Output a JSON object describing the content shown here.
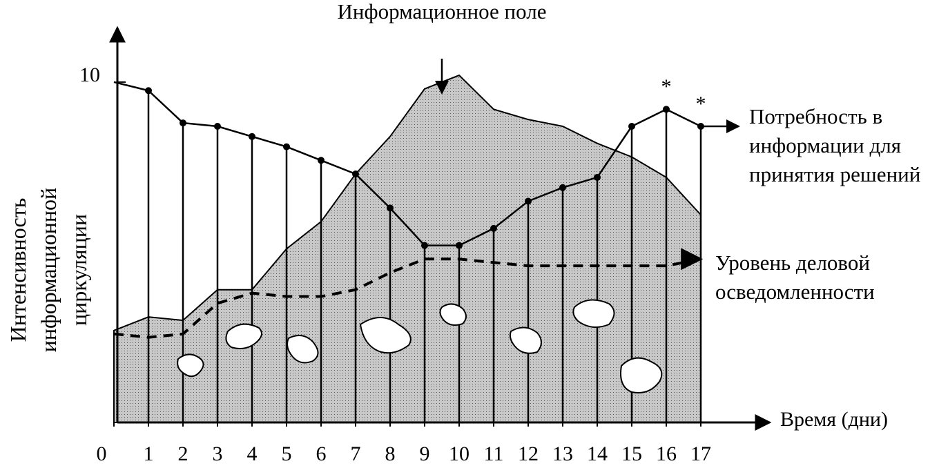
{
  "chart_data": {
    "type": "line",
    "x_label": "Время (дни)",
    "y_label": "Интенсивность информационной циркуляции",
    "x": [
      0,
      1,
      2,
      3,
      4,
      5,
      6,
      7,
      8,
      9,
      10,
      11,
      12,
      13,
      14,
      15,
      16,
      17
    ],
    "xlim": [
      0,
      19
    ],
    "xticks": [
      0,
      1,
      2,
      3,
      4,
      5,
      6,
      7,
      8,
      9,
      10,
      11,
      12,
      13,
      14,
      15,
      16,
      17
    ],
    "ylim": [
      0,
      11.6
    ],
    "yticks": [
      10
    ],
    "series": [
      {
        "name": "Информационное поле",
        "style": "area",
        "color": "#b4b4b4",
        "values": [
          2.7,
          3.1,
          3.0,
          3.9,
          3.9,
          5.1,
          5.9,
          7.3,
          8.4,
          9.8,
          10.2,
          9.2,
          8.9,
          8.7,
          8.2,
          7.8,
          7.2,
          6.1
        ]
      },
      {
        "name": "Потребность в информации для принятия решений",
        "style": "line",
        "color": "#000000",
        "values": [
          10.0,
          9.75,
          8.8,
          8.7,
          8.4,
          8.1,
          7.7,
          7.3,
          6.3,
          5.2,
          5.2,
          5.7,
          6.5,
          6.9,
          7.2,
          8.7,
          9.2,
          8.7
        ]
      },
      {
        "name": "Уровень деловой осведомленности",
        "style": "dashed",
        "color": "#000000",
        "values": [
          2.6,
          2.5,
          2.6,
          3.5,
          3.8,
          3.7,
          3.7,
          3.9,
          4.4,
          4.8,
          4.8,
          4.7,
          4.6,
          4.6,
          4.6,
          4.6,
          4.6,
          4.8
        ]
      }
    ],
    "annotations": [
      "*",
      "*"
    ]
  }
}
